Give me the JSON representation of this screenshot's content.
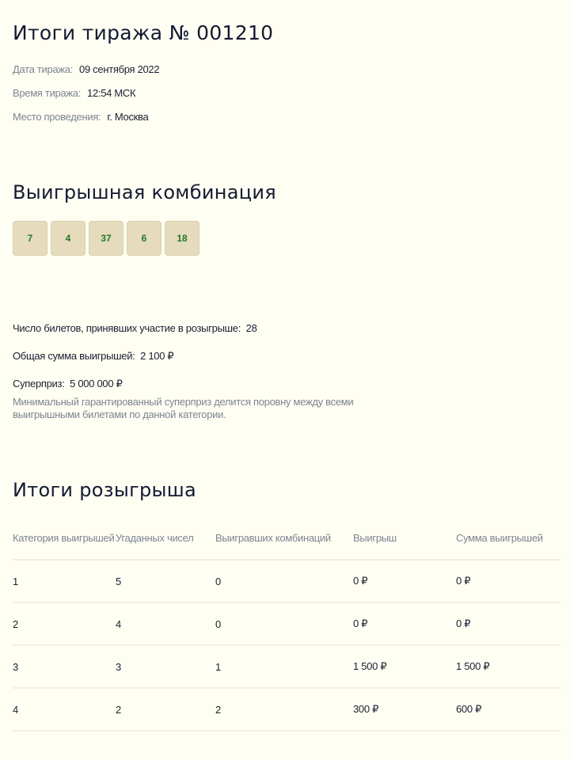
{
  "title": "Итоги тиража № 001210",
  "meta": [
    {
      "label": "Дата тиража:",
      "value": "09 сентября 2022"
    },
    {
      "label": "Время тиража:",
      "value": "12:54 МСК"
    },
    {
      "label": "Место проведения:",
      "value": "г. Москва"
    }
  ],
  "combination": {
    "title": "Выигрышная комбинация",
    "numbers": [
      "7",
      "4",
      "37",
      "6",
      "18"
    ],
    "number_color": "#1f7a26",
    "ball_color": "#e6dcbd"
  },
  "stats": {
    "tickets_label": "Число билетов, принявших участие в розыгрыше:",
    "tickets_value": "28",
    "total_label": "Общая сумма выигрышей:",
    "total_value": "2 100 ₽",
    "superprize_label": "Суперприз:",
    "superprize_value": "5 000 000 ₽",
    "note": "Минимальный гарантированный суперприз делится поровну между всеми выигрышными билетами по данной категории."
  },
  "results": {
    "title": "Итоги розыгрыша",
    "headers": [
      "Категория выигрышей",
      "Угаданных чисел",
      "Выигравших комбинаций",
      "Выигрыш",
      "Сумма выигрышей"
    ],
    "rows": [
      [
        "1",
        "5",
        "0",
        "0 ₽",
        "0 ₽"
      ],
      [
        "2",
        "4",
        "0",
        "0 ₽",
        "0 ₽"
      ],
      [
        "3",
        "3",
        "1",
        "1 500 ₽",
        "1 500 ₽"
      ],
      [
        "4",
        "2",
        "2",
        "300 ₽",
        "600 ₽"
      ]
    ]
  }
}
